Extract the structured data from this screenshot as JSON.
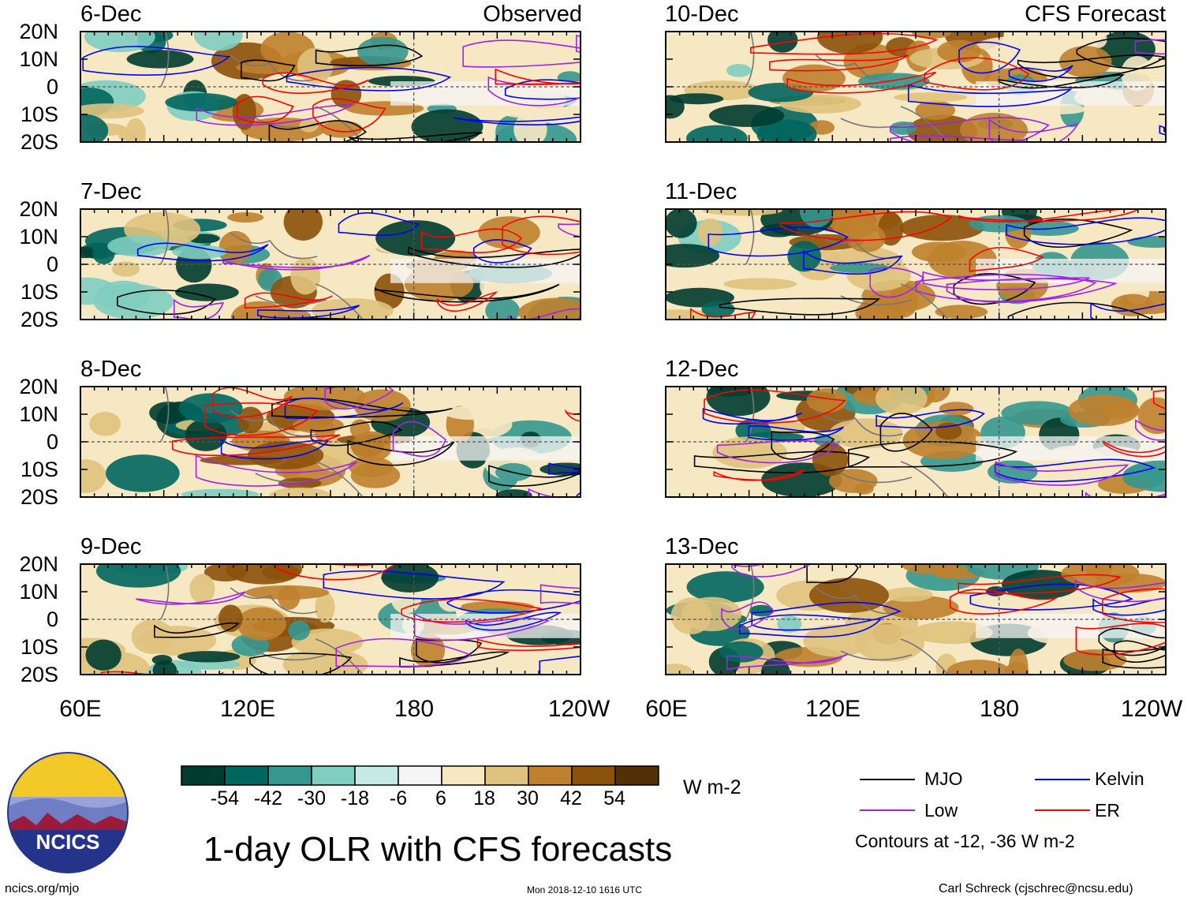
{
  "figure": {
    "title": "1-day OLR with CFS forecasts",
    "left_column_label": "Observed",
    "right_column_label": "CFS Forecast",
    "units": "W m-2",
    "contour_note": "Contours at -12, -36 W m-2",
    "website": "ncics.org/mjo",
    "timestamp": "Mon 2018-12-10 1616 UTC",
    "author": "Carl Schreck (cjschrec@ncsu.edu)",
    "logo_text": "NCICS"
  },
  "map_axes": {
    "lat_labels": [
      "20N",
      "10N",
      "0",
      "10S",
      "20S"
    ],
    "lon_labels": [
      "60E",
      "120E",
      "180",
      "120W"
    ]
  },
  "panels": {
    "observed": [
      "6-Dec",
      "7-Dec",
      "8-Dec",
      "9-Dec"
    ],
    "forecast": [
      "10-Dec",
      "11-Dec",
      "12-Dec",
      "13-Dec"
    ]
  },
  "colorbar": {
    "tick_labels": [
      "-54",
      "-42",
      "-30",
      "-18",
      "-6",
      "6",
      "18",
      "30",
      "42",
      "54"
    ],
    "colors": [
      "#003c30",
      "#01665e",
      "#35978f",
      "#80cdc1",
      "#c7eae5",
      "#f5f5f5",
      "#f6e8c3",
      "#dfc27d",
      "#bf812d",
      "#8c510a",
      "#543005"
    ]
  },
  "legend": [
    {
      "label": "MJO",
      "color": "#000000"
    },
    {
      "label": "Kelvin",
      "color": "#0000ff"
    },
    {
      "label": "Low",
      "color": "#a020f0"
    },
    {
      "label": "ER",
      "color": "#ff0000"
    }
  ]
}
